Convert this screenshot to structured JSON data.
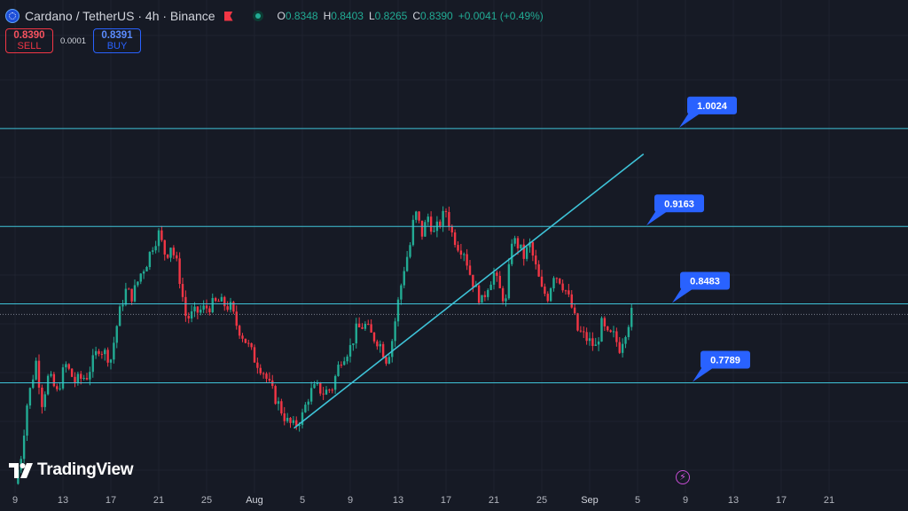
{
  "header": {
    "symbol": "Cardano / TetherUS · 4h · Binance",
    "ohlc": {
      "o_label": "O",
      "o_value": "0.8348",
      "h_label": "H",
      "h_value": "0.8403",
      "l_label": "L",
      "l_value": "0.8265",
      "c_label": "C",
      "c_value": "0.8390",
      "change": "+0.0041 (+0.49%)"
    },
    "icons": [
      "cardano-coin-icon",
      "flag-icon",
      "market-status-icon"
    ],
    "colors": {
      "up": "#22ab94",
      "down": "#f23645"
    }
  },
  "trade": {
    "sell_price": "0.8390",
    "sell_label": "SELL",
    "spread": "0.0001",
    "buy_price": "0.8391",
    "buy_label": "BUY"
  },
  "watermark": {
    "text": "TradingView"
  },
  "chart_data": {
    "type": "candlestick",
    "ylim": [
      0.688,
      1.053
    ],
    "x_ticks": [
      "9",
      "13",
      "17",
      "21",
      "25",
      "Aug",
      "5",
      "9",
      "13",
      "17",
      "21",
      "25",
      "Sep",
      "5",
      "9",
      "13",
      "17",
      "21"
    ],
    "price_path": [
      [
        9.0,
        0.69
      ],
      [
        9.5,
        0.715
      ],
      [
        10.0,
        0.76
      ],
      [
        10.3,
        0.775
      ],
      [
        10.8,
        0.8
      ],
      [
        11.2,
        0.76
      ],
      [
        11.8,
        0.785
      ],
      [
        12.5,
        0.77
      ],
      [
        13.2,
        0.795
      ],
      [
        14.0,
        0.78
      ],
      [
        15.0,
        0.785
      ],
      [
        16.0,
        0.81
      ],
      [
        17.0,
        0.8
      ],
      [
        17.6,
        0.835
      ],
      [
        18.2,
        0.86
      ],
      [
        18.8,
        0.855
      ],
      [
        19.5,
        0.875
      ],
      [
        20.0,
        0.885
      ],
      [
        20.5,
        0.9
      ],
      [
        21.0,
        0.91
      ],
      [
        21.6,
        0.89
      ],
      [
        22.0,
        0.9
      ],
      [
        22.6,
        0.88
      ],
      [
        23.3,
        0.835
      ],
      [
        24.0,
        0.84
      ],
      [
        25.0,
        0.845
      ],
      [
        26.0,
        0.85
      ],
      [
        27.0,
        0.845
      ],
      [
        27.5,
        0.83
      ],
      [
        28.3,
        0.815
      ],
      [
        29.0,
        0.8
      ],
      [
        29.7,
        0.79
      ],
      [
        30.3,
        0.775
      ],
      [
        31.0,
        0.76
      ],
      [
        31.7,
        0.745
      ],
      [
        32.3,
        0.74
      ],
      [
        33.0,
        0.75
      ],
      [
        33.6,
        0.77
      ],
      [
        34.2,
        0.775
      ],
      [
        34.8,
        0.77
      ],
      [
        35.5,
        0.775
      ],
      [
        36.2,
        0.8
      ],
      [
        37.0,
        0.81
      ],
      [
        37.5,
        0.825
      ],
      [
        38.2,
        0.83
      ],
      [
        38.8,
        0.82
      ],
      [
        39.4,
        0.815
      ],
      [
        40.0,
        0.8
      ],
      [
        40.4,
        0.81
      ],
      [
        41.0,
        0.85
      ],
      [
        41.5,
        0.88
      ],
      [
        42.0,
        0.9
      ],
      [
        42.4,
        0.93
      ],
      [
        43.0,
        0.91
      ],
      [
        43.5,
        0.925
      ],
      [
        44.0,
        0.91
      ],
      [
        44.5,
        0.92
      ],
      [
        45.0,
        0.93
      ],
      [
        45.5,
        0.91
      ],
      [
        46.0,
        0.9
      ],
      [
        46.5,
        0.895
      ],
      [
        47.0,
        0.875
      ],
      [
        47.5,
        0.86
      ],
      [
        48.0,
        0.85
      ],
      [
        48.5,
        0.865
      ],
      [
        49.0,
        0.875
      ],
      [
        49.5,
        0.86
      ],
      [
        50.0,
        0.85
      ],
      [
        50.5,
        0.905
      ],
      [
        51.0,
        0.9
      ],
      [
        51.5,
        0.89
      ],
      [
        52.0,
        0.9
      ],
      [
        52.5,
        0.88
      ],
      [
        53.0,
        0.86
      ],
      [
        53.5,
        0.855
      ],
      [
        54.0,
        0.875
      ],
      [
        54.5,
        0.87
      ],
      [
        55.0,
        0.86
      ],
      [
        55.5,
        0.845
      ],
      [
        56.0,
        0.825
      ],
      [
        56.5,
        0.82
      ],
      [
        57.0,
        0.815
      ],
      [
        57.5,
        0.81
      ],
      [
        58.0,
        0.83
      ],
      [
        58.5,
        0.82
      ],
      [
        59.0,
        0.82
      ],
      [
        59.5,
        0.81
      ],
      [
        60.0,
        0.825
      ],
      [
        60.5,
        0.84
      ]
    ],
    "horizontal_levels": [
      {
        "value": 1.0024,
        "label": "1.0024"
      },
      {
        "value": 0.9163,
        "label": "0.9163"
      },
      {
        "value": 0.8483,
        "label": "0.8483"
      },
      {
        "value": 0.7789,
        "label": "0.7789"
      }
    ],
    "trendline": {
      "from": [
        32.3,
        0.739
      ],
      "to": [
        61.5,
        0.98
      ]
    },
    "current_price": 0.839,
    "grid": true
  }
}
